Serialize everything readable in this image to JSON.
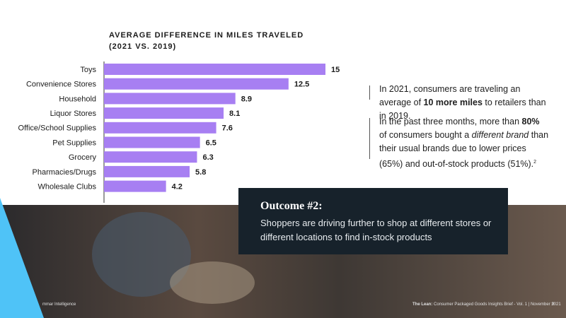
{
  "chart_data": {
    "type": "bar",
    "orientation": "horizontal",
    "title": "AVERAGE DIFFERENCE IN MILES TRAVELED",
    "subtitle": "(2021 VS. 2019)",
    "categories": [
      "Toys",
      "Convenience Stores",
      "Household",
      "Liquor Stores",
      "Office/School Supplies",
      "Pet Supplies",
      "Grocery",
      "Pharmacies/Drugs",
      "Wholesale Clubs"
    ],
    "values": [
      15,
      12.5,
      8.9,
      8.1,
      7.6,
      6.5,
      6.3,
      5.8,
      4.2
    ],
    "color": "#a77ff2"
  },
  "text": {
    "p1": [
      "In 2021, consumers are traveling an average of ",
      "10 more miles",
      " to retailers than in 2019."
    ],
    "p2": [
      "In the past three months, more than ",
      "80%",
      " of consumers bought a ",
      "different brand",
      " than their usual brands due to lower prices (65%) and out-of-stock products (51%).",
      "2"
    ]
  },
  "outcome": {
    "title": "Outcome #2:",
    "body": "Shoppers are driving further to shop at different stores or different locations to find in-stock products"
  },
  "footer": {
    "brand": "mmar Intelligence",
    "publication_bold": "The Lean:",
    "publication": " Consumer Packaged Goods Insights Brief - Vol. 1 | November 2021",
    "page": "9"
  }
}
